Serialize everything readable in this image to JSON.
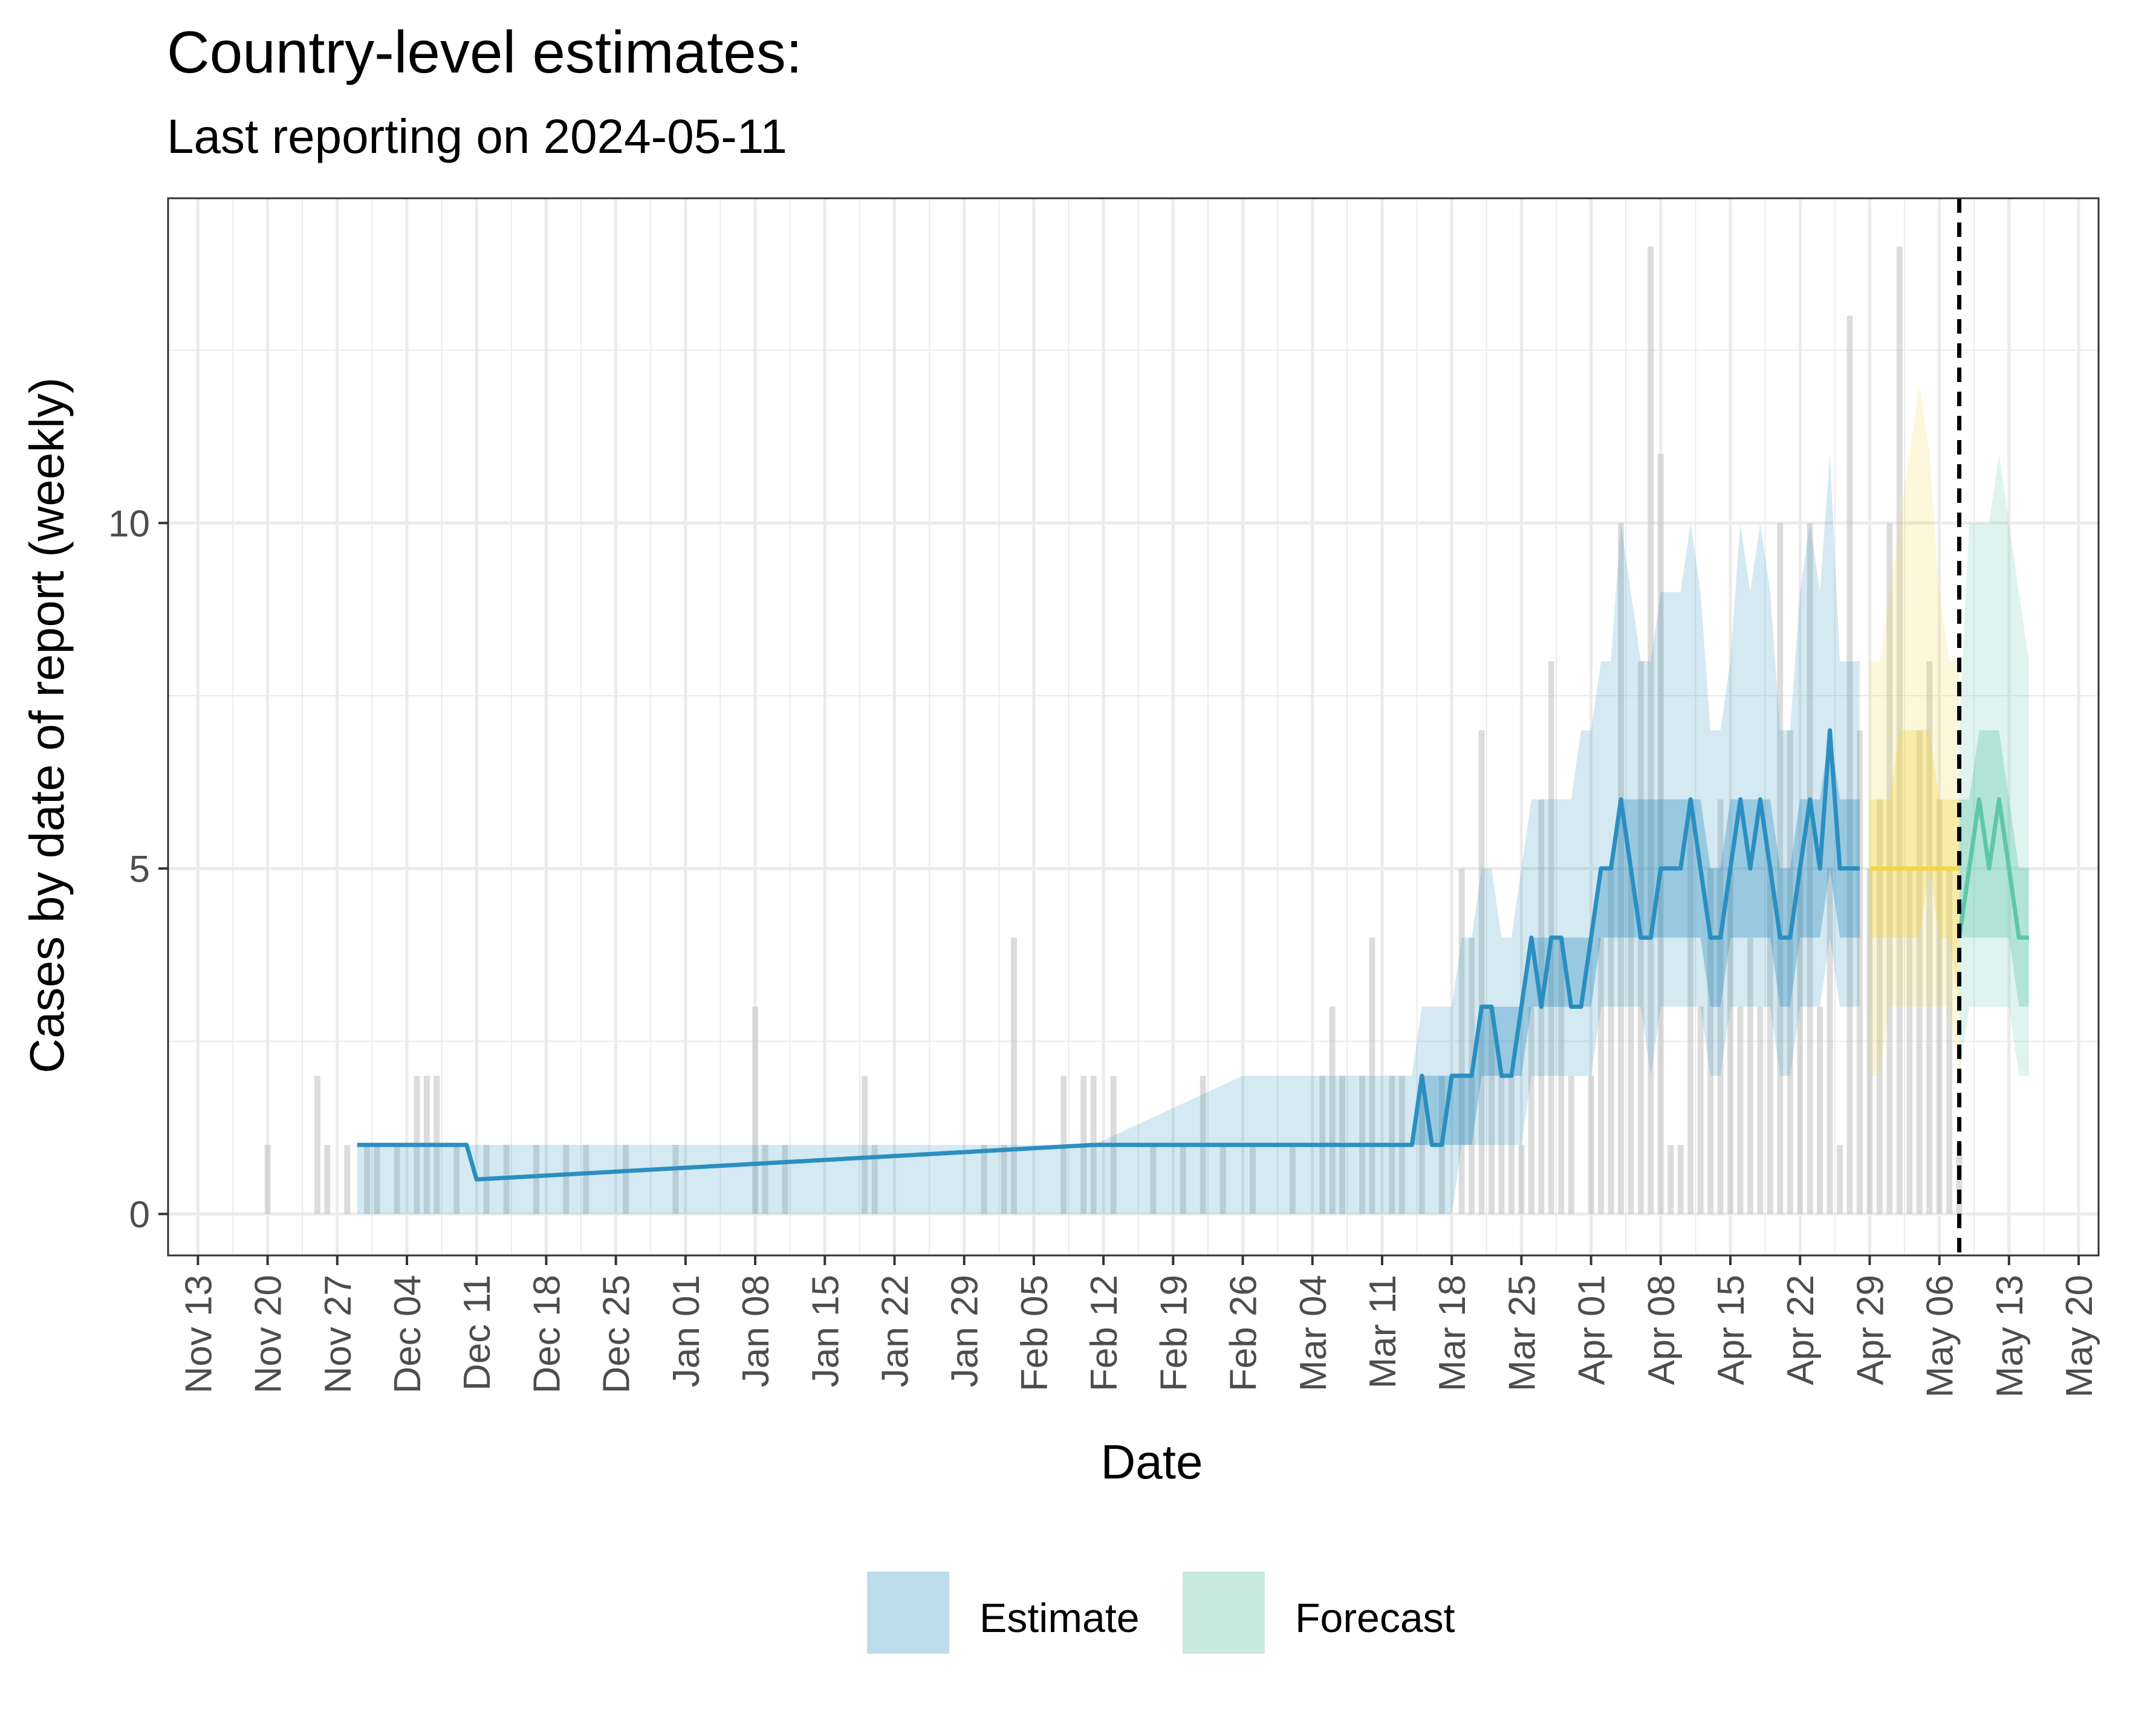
{
  "chart_data": {
    "type": "area",
    "title": "Country-level estimates:",
    "subtitle": "Last reporting on 2024-05-11",
    "xlabel": "Date",
    "ylabel": "Cases by date of report (weekly)",
    "xlim": [
      "2023-11-10",
      "2024-05-22"
    ],
    "ylim": [
      -0.6,
      14.7
    ],
    "y_ticks": [
      0,
      5,
      10
    ],
    "x_ticks": [
      "2023-11-13",
      "2023-11-20",
      "2023-11-27",
      "2023-12-04",
      "2023-12-11",
      "2023-12-18",
      "2023-12-25",
      "2024-01-01",
      "2024-01-08",
      "2024-01-15",
      "2024-01-22",
      "2024-01-29",
      "2024-02-05",
      "2024-02-12",
      "2024-02-19",
      "2024-02-26",
      "2024-03-04",
      "2024-03-11",
      "2024-03-18",
      "2024-03-25",
      "2024-04-01",
      "2024-04-08",
      "2024-04-15",
      "2024-04-22",
      "2024-04-29",
      "2024-05-06",
      "2024-05-13",
      "2024-05-20"
    ],
    "x_tick_labels": [
      "Nov 13",
      "Nov 20",
      "Nov 27",
      "Dec 04",
      "Dec 11",
      "Dec 18",
      "Dec 25",
      "Jan 01",
      "Jan 08",
      "Jan 15",
      "Jan 22",
      "Jan 29",
      "Feb 05",
      "Feb 12",
      "Feb 19",
      "Feb 26",
      "Mar 04",
      "Mar 11",
      "Mar 18",
      "Mar 25",
      "Apr 01",
      "Apr 08",
      "Apr 15",
      "Apr 22",
      "Apr 29",
      "May 06",
      "May 13",
      "May 20"
    ],
    "grid": true,
    "legend": {
      "position": "bottom",
      "entries": [
        "Estimate",
        "Forecast"
      ]
    },
    "vline": "2024-05-08",
    "colors": {
      "estimate": "#2a8fc0",
      "forecast": "#5fc7a8",
      "partial": "#f1d64a",
      "reported": "#bfbfbf",
      "grid": "#ebebeb",
      "vline": "#000000"
    },
    "reported": [
      [
        "2023-11-20",
        1
      ],
      [
        "2023-11-25",
        2
      ],
      [
        "2023-11-26",
        1
      ],
      [
        "2023-11-28",
        1
      ],
      [
        "2023-11-30",
        1
      ],
      [
        "2023-12-01",
        1
      ],
      [
        "2023-12-03",
        1
      ],
      [
        "2023-12-05",
        2
      ],
      [
        "2023-12-06",
        2
      ],
      [
        "2023-12-07",
        2
      ],
      [
        "2023-12-09",
        1
      ],
      [
        "2023-12-12",
        1
      ],
      [
        "2023-12-14",
        1
      ],
      [
        "2023-12-17",
        1
      ],
      [
        "2023-12-20",
        1
      ],
      [
        "2023-12-22",
        1
      ],
      [
        "2023-12-26",
        1
      ],
      [
        "2023-12-31",
        1
      ],
      [
        "2024-01-08",
        3
      ],
      [
        "2024-01-09",
        1
      ],
      [
        "2024-01-11",
        1
      ],
      [
        "2024-01-19",
        2
      ],
      [
        "2024-01-20",
        1
      ],
      [
        "2024-01-31",
        1
      ],
      [
        "2024-02-02",
        1
      ],
      [
        "2024-02-03",
        4
      ],
      [
        "2024-02-08",
        2
      ],
      [
        "2024-02-10",
        2
      ],
      [
        "2024-02-11",
        2
      ],
      [
        "2024-02-13",
        2
      ],
      [
        "2024-02-17",
        1
      ],
      [
        "2024-02-20",
        1
      ],
      [
        "2024-02-22",
        2
      ],
      [
        "2024-02-24",
        1
      ],
      [
        "2024-02-27",
        1
      ],
      [
        "2024-03-02",
        1
      ],
      [
        "2024-03-05",
        2
      ],
      [
        "2024-03-06",
        3
      ],
      [
        "2024-03-07",
        2
      ],
      [
        "2024-03-09",
        2
      ],
      [
        "2024-03-10",
        4
      ],
      [
        "2024-03-12",
        2
      ],
      [
        "2024-03-13",
        2
      ],
      [
        "2024-03-15",
        2
      ],
      [
        "2024-03-17",
        2
      ],
      [
        "2024-03-19",
        5
      ],
      [
        "2024-03-20",
        4
      ],
      [
        "2024-03-21",
        7
      ],
      [
        "2024-03-22",
        3
      ],
      [
        "2024-03-23",
        2
      ],
      [
        "2024-03-24",
        2
      ],
      [
        "2024-03-25",
        1
      ],
      [
        "2024-03-26",
        3
      ],
      [
        "2024-03-27",
        6
      ],
      [
        "2024-03-28",
        8
      ],
      [
        "2024-03-29",
        4
      ],
      [
        "2024-03-30",
        2
      ],
      [
        "2024-04-01",
        2
      ],
      [
        "2024-04-02",
        4
      ],
      [
        "2024-04-03",
        5
      ],
      [
        "2024-04-04",
        10
      ],
      [
        "2024-04-05",
        5
      ],
      [
        "2024-04-06",
        8
      ],
      [
        "2024-04-07",
        14
      ],
      [
        "2024-04-08",
        11
      ],
      [
        "2024-04-09",
        1
      ],
      [
        "2024-04-10",
        1
      ],
      [
        "2024-04-11",
        6
      ],
      [
        "2024-04-12",
        3
      ],
      [
        "2024-04-13",
        5
      ],
      [
        "2024-04-14",
        6
      ],
      [
        "2024-04-15",
        5
      ],
      [
        "2024-04-16",
        3
      ],
      [
        "2024-04-17",
        4
      ],
      [
        "2024-04-18",
        3
      ],
      [
        "2024-04-19",
        5
      ],
      [
        "2024-04-20",
        10
      ],
      [
        "2024-04-21",
        7
      ],
      [
        "2024-04-22",
        5
      ],
      [
        "2024-04-23",
        10
      ],
      [
        "2024-04-24",
        3
      ],
      [
        "2024-04-25",
        5
      ],
      [
        "2024-04-26",
        1
      ],
      [
        "2024-04-27",
        13
      ],
      [
        "2024-04-28",
        7
      ],
      [
        "2024-04-29",
        5
      ],
      [
        "2024-04-30",
        6
      ],
      [
        "2024-05-01",
        10
      ],
      [
        "2024-05-02",
        14
      ],
      [
        "2024-05-03",
        5
      ],
      [
        "2024-05-04",
        7
      ],
      [
        "2024-05-05",
        8
      ],
      [
        "2024-05-06",
        6
      ],
      [
        "2024-05-07",
        5
      ],
      [
        "2024-05-08",
        1
      ]
    ],
    "estimate": {
      "dates": [
        "2023-11-29",
        "2023-12-10",
        "2023-12-11",
        "2024-02-11",
        "2024-02-26",
        "2024-03-14",
        "2024-03-15",
        "2024-03-16",
        "2024-03-17",
        "2024-03-18",
        "2024-03-19",
        "2024-03-20",
        "2024-03-21",
        "2024-03-22",
        "2024-03-23",
        "2024-03-24",
        "2024-03-25",
        "2024-03-26",
        "2024-03-27",
        "2024-03-28",
        "2024-03-29",
        "2024-03-30",
        "2024-03-31",
        "2024-04-01",
        "2024-04-02",
        "2024-04-03",
        "2024-04-04",
        "2024-04-05",
        "2024-04-06",
        "2024-04-07",
        "2024-04-08",
        "2024-04-09",
        "2024-04-10",
        "2024-04-11",
        "2024-04-12",
        "2024-04-13",
        "2024-04-14",
        "2024-04-15",
        "2024-04-16",
        "2024-04-17",
        "2024-04-18",
        "2024-04-19",
        "2024-04-20",
        "2024-04-21",
        "2024-04-22",
        "2024-04-23",
        "2024-04-24",
        "2024-04-25",
        "2024-04-26",
        "2024-04-27",
        "2024-04-28"
      ],
      "median": [
        1,
        1,
        0.5,
        1,
        1,
        1,
        2,
        1,
        1,
        2,
        2,
        2,
        3,
        3,
        2,
        2,
        3,
        4,
        3,
        4,
        4,
        3,
        3,
        4,
        5,
        5,
        6,
        5,
        4,
        4,
        5,
        5,
        5,
        6,
        5,
        4,
        4,
        5,
        6,
        5,
        6,
        5,
        4,
        4,
        5,
        6,
        5,
        7,
        5,
        5,
        5
      ],
      "lower50": [
        1,
        1,
        1,
        1,
        1,
        1,
        1,
        1,
        1,
        1,
        1,
        1,
        2,
        2,
        2,
        2,
        2,
        3,
        3,
        3,
        3,
        3,
        3,
        3,
        4,
        4,
        4,
        4,
        4,
        4,
        4,
        4,
        4,
        4,
        4,
        3,
        3,
        4,
        4,
        4,
        4,
        4,
        3,
        3,
        4,
        4,
        4,
        5,
        4,
        4,
        4
      ],
      "upper50": [
        1,
        1,
        1,
        1,
        1,
        1,
        2,
        2,
        2,
        2,
        2,
        2,
        3,
        3,
        3,
        3,
        3,
        4,
        4,
        4,
        4,
        4,
        4,
        4,
        5,
        5,
        6,
        6,
        6,
        6,
        6,
        6,
        6,
        6,
        6,
        5,
        5,
        6,
        6,
        6,
        6,
        6,
        5,
        5,
        6,
        6,
        6,
        7,
        6,
        6,
        6
      ],
      "lower90": [
        0,
        0,
        0,
        0,
        0,
        0,
        0,
        0,
        0,
        0,
        1,
        1,
        1,
        1,
        1,
        1,
        1,
        2,
        2,
        2,
        2,
        2,
        2,
        2,
        3,
        3,
        3,
        3,
        3,
        2,
        3,
        3,
        3,
        3,
        3,
        2,
        2,
        3,
        3,
        3,
        3,
        3,
        2,
        2,
        3,
        3,
        3,
        4,
        3,
        3,
        3
      ],
      "upper90": [
        1,
        1,
        1,
        1,
        2,
        2,
        3,
        3,
        3,
        3,
        4,
        4,
        5,
        5,
        4,
        4,
        5,
        6,
        6,
        6,
        6,
        6,
        7,
        7,
        8,
        8,
        10,
        9,
        8,
        8,
        9,
        9,
        9,
        10,
        9,
        7,
        7,
        8,
        10,
        9,
        10,
        9,
        7,
        7,
        9,
        10,
        9,
        11,
        8,
        8,
        8
      ]
    },
    "partial": {
      "dates": [
        "2024-04-29",
        "2024-04-30",
        "2024-05-01",
        "2024-05-02",
        "2024-05-03",
        "2024-05-04",
        "2024-05-05",
        "2024-05-06",
        "2024-05-07",
        "2024-05-08"
      ],
      "median": [
        5,
        5,
        5,
        5,
        5,
        5,
        5,
        5,
        5,
        5
      ],
      "lower50": [
        4,
        4,
        4,
        4,
        4,
        4,
        5,
        4,
        4,
        3
      ],
      "upper50": [
        6,
        6,
        6,
        7,
        7,
        7,
        7,
        6,
        6,
        6
      ],
      "lower90": [
        2,
        2,
        3,
        3,
        3,
        3,
        3,
        3,
        3,
        2
      ],
      "upper90": [
        8,
        8,
        9,
        10,
        11,
        12,
        11,
        9,
        8,
        8
      ]
    },
    "forecast": {
      "dates": [
        "2024-05-08",
        "2024-05-09",
        "2024-05-10",
        "2024-05-11",
        "2024-05-12",
        "2024-05-13",
        "2024-05-14",
        "2024-05-15"
      ],
      "median": [
        4,
        5,
        6,
        5,
        6,
        5,
        4,
        4
      ],
      "lower50": [
        4,
        4,
        4,
        4,
        4,
        4,
        3,
        3
      ],
      "upper50": [
        6,
        6,
        7,
        7,
        7,
        6,
        5,
        5
      ],
      "lower90": [
        2,
        3,
        3,
        3,
        3,
        3,
        2,
        2
      ],
      "upper90": [
        7,
        10,
        10,
        10,
        11,
        10,
        9,
        8
      ]
    }
  }
}
